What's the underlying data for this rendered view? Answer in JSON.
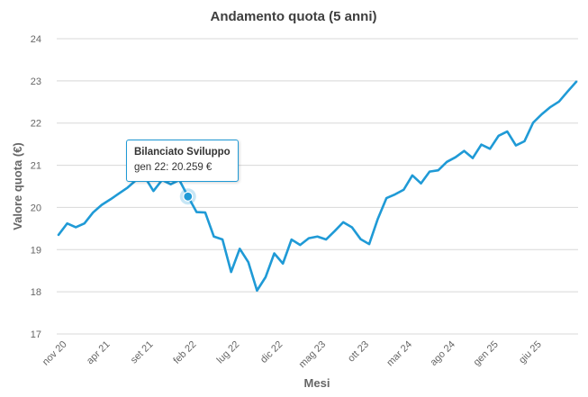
{
  "colors": {
    "series": "#1f9ad6",
    "grid": "#d8d8d8",
    "text": "#666666",
    "title": "#3e3e3e"
  },
  "tooltip": {
    "series_name": "Bilanciato Sviluppo",
    "text": "gen 22: 20.259 €",
    "category": "gen 22",
    "value": 20.259
  },
  "chart_data": {
    "type": "line",
    "title": "Andamento quota (5 anni)",
    "xlabel": "Mesi",
    "ylabel": "Valore quota (€)",
    "ylim": [
      17,
      24
    ],
    "yticks": [
      17,
      18,
      19,
      20,
      21,
      22,
      23,
      24
    ],
    "grid": true,
    "legend": "none",
    "x_tick_labels": [
      "nov 20",
      "apr 21",
      "set 21",
      "feb 22",
      "lug 22",
      "dic 22",
      "mag 23",
      "ott 23",
      "mar 24",
      "ago 24",
      "gen 25",
      "giu 25"
    ],
    "categories": [
      "ott 20",
      "nov 20",
      "dic 20",
      "gen 21",
      "feb 21",
      "mar 21",
      "apr 21",
      "mag 21",
      "giu 21",
      "lug 21",
      "ago 21",
      "set 21",
      "ott 21",
      "nov 21",
      "dic 21",
      "gen 22",
      "feb 22",
      "mar 22",
      "apr 22",
      "mag 22",
      "giu 22",
      "lug 22",
      "ago 22",
      "set 22",
      "ott 22",
      "nov 22",
      "dic 22",
      "gen 23",
      "feb 23",
      "mar 23",
      "apr 23",
      "mag 23",
      "giu 23",
      "lug 23",
      "ago 23",
      "set 23",
      "ott 23",
      "nov 23",
      "dic 23",
      "gen 24",
      "feb 24",
      "mar 24",
      "apr 24",
      "mag 24",
      "giu 24",
      "lug 24",
      "ago 24",
      "set 24",
      "ott 24",
      "nov 24",
      "dic 24",
      "gen 25",
      "feb 25",
      "mar 25",
      "apr 25",
      "mag 25",
      "giu 25",
      "lug 25",
      "ago 25",
      "set 25",
      "ott 25"
    ],
    "series": [
      {
        "name": "Bilanciato Sviluppo",
        "values": [
          19.35,
          19.62,
          19.53,
          19.62,
          19.88,
          20.06,
          20.19,
          20.33,
          20.47,
          20.65,
          20.72,
          20.39,
          20.65,
          20.55,
          20.65,
          20.259,
          19.89,
          19.88,
          19.31,
          19.24,
          18.47,
          19.02,
          18.7,
          18.03,
          18.35,
          18.91,
          18.67,
          19.24,
          19.11,
          19.27,
          19.31,
          19.24,
          19.44,
          19.65,
          19.53,
          19.25,
          19.13,
          19.73,
          20.22,
          20.31,
          20.42,
          20.76,
          20.57,
          20.85,
          20.88,
          21.08,
          21.19,
          21.34,
          21.17,
          21.49,
          21.39,
          21.7,
          21.8,
          21.47,
          21.57,
          22.01,
          22.21,
          22.38,
          22.51,
          22.75,
          22.98
        ]
      }
    ]
  }
}
